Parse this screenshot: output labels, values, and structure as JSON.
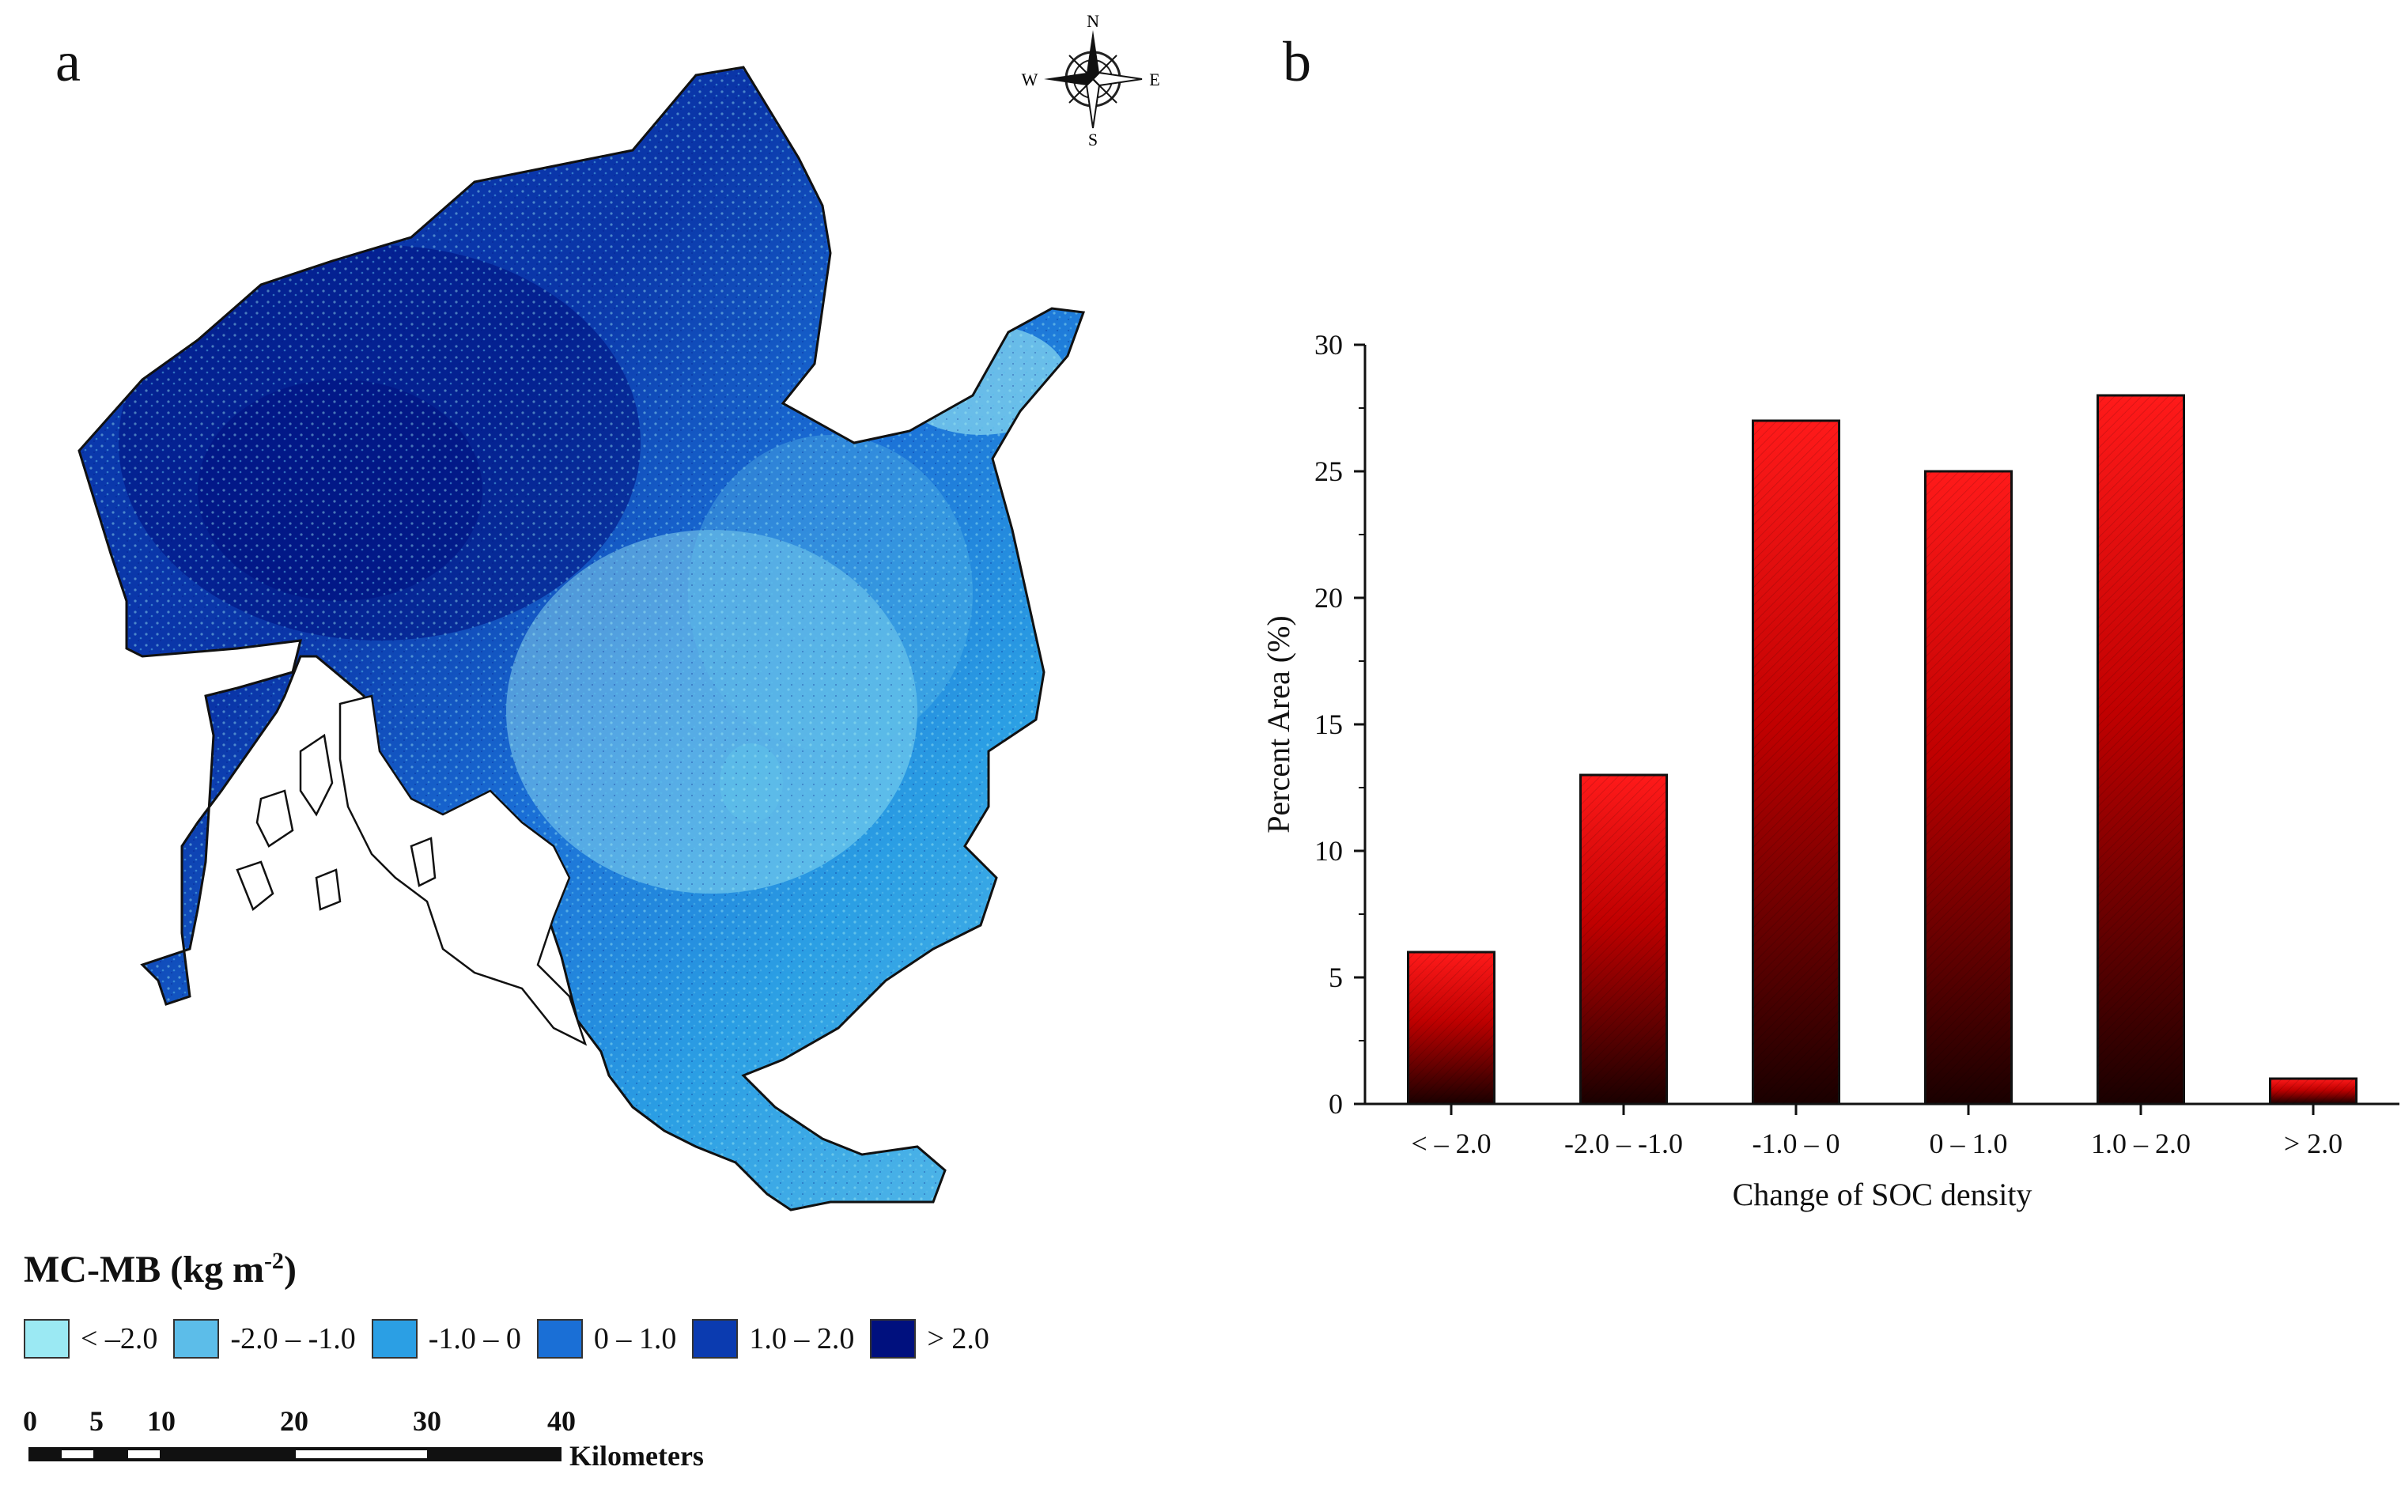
{
  "panels": {
    "a": "a",
    "b": "b"
  },
  "map": {
    "compass": {
      "n": "N",
      "s": "S",
      "e": "E",
      "w": "W"
    },
    "legend": {
      "title_main": "MC-MB (kg m",
      "title_sup": "-2",
      "title_close": ")",
      "items": [
        {
          "label": "< –2.0",
          "color": "#9be9f3"
        },
        {
          "label": "-2.0 – -1.0",
          "color": "#5cbde9"
        },
        {
          "label": "-1.0 – 0",
          "color": "#2b9fe4"
        },
        {
          "label": "0 – 1.0",
          "color": "#1a6fd6"
        },
        {
          "label": "1.0 – 2.0",
          "color": "#0b3bb0"
        },
        {
          "label": "> 2.0",
          "color": "#00107e"
        }
      ]
    },
    "scalebar": {
      "ticks": [
        "0",
        "5",
        "10",
        "20",
        "30",
        "40"
      ],
      "units": "Kilometers"
    }
  },
  "chart_data": {
    "type": "bar",
    "categories": [
      "< – 2.0",
      "-2.0 – -1.0",
      "-1.0 – 0",
      "0 – 1.0",
      "1.0 – 2.0",
      "> 2.0"
    ],
    "values": [
      6,
      13,
      27,
      25,
      28,
      1
    ],
    "xlabel": "Change of SOC density",
    "ylabel": "Percent Area (%)",
    "ylim": [
      0,
      30
    ],
    "yticks": [
      0,
      5,
      10,
      15,
      20,
      25,
      30
    ],
    "bar_color_top": "#ff1a1a",
    "bar_color_bottom": "#1a0000"
  }
}
